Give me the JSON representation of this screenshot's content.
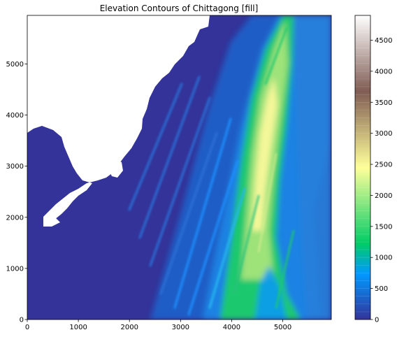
{
  "chart_data": {
    "type": "heatmap",
    "title": "Elevation Contours of Chittagong [fill]",
    "xlabel": "",
    "ylabel": "",
    "xlim": [
      0,
      5950
    ],
    "ylim": [
      0,
      5950
    ],
    "x_ticks": [
      0,
      1000,
      2000,
      3000,
      4000,
      5000
    ],
    "y_ticks": [
      0,
      1000,
      2000,
      3000,
      4000,
      5000
    ],
    "colorbar": {
      "range": [
        0,
        4900
      ],
      "ticks": [
        0,
        500,
        1000,
        1500,
        2000,
        2500,
        3000,
        3500,
        4000,
        4500
      ],
      "colormap": "terrain",
      "level_step": 125
    },
    "masked_color": "#ffffff",
    "grid": false
  }
}
